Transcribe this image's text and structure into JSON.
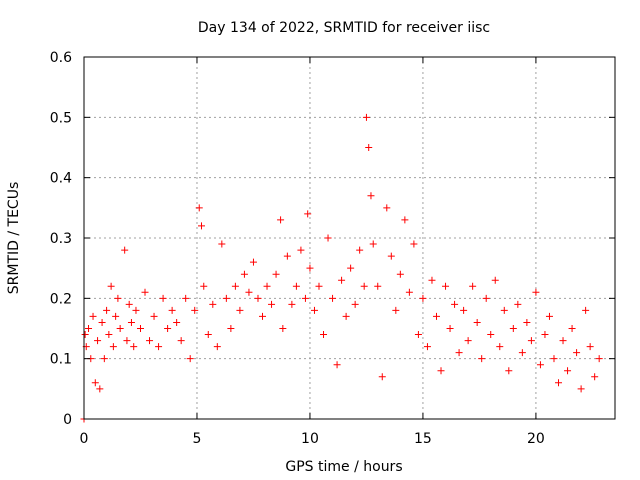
{
  "chart_data": {
    "type": "scatter",
    "title": "Day 134 of 2022, SRMTID for receiver iisc",
    "xlabel": "GPS time / hours",
    "ylabel": "SRMTID / TECUs",
    "xlim": [
      0,
      23.5
    ],
    "ylim": [
      0,
      0.6
    ],
    "xticks": [
      0,
      5,
      10,
      15,
      20
    ],
    "yticks": [
      0,
      0.1,
      0.2,
      0.3,
      0.4,
      0.5,
      0.6
    ],
    "grid": true,
    "marker": "plus",
    "series": [
      {
        "name": "SRMTID",
        "color": "#ff0000",
        "x": [
          0.0,
          0.05,
          0.1,
          0.2,
          0.3,
          0.4,
          0.5,
          0.6,
          0.7,
          0.8,
          0.9,
          1.0,
          1.1,
          1.2,
          1.3,
          1.4,
          1.5,
          1.6,
          1.8,
          1.9,
          2.0,
          2.1,
          2.2,
          2.3,
          2.5,
          2.7,
          2.9,
          3.1,
          3.3,
          3.5,
          3.7,
          3.9,
          4.1,
          4.3,
          4.5,
          4.7,
          4.9,
          5.1,
          5.2,
          5.3,
          5.5,
          5.7,
          5.9,
          6.1,
          6.3,
          6.5,
          6.7,
          6.9,
          7.1,
          7.3,
          7.5,
          7.7,
          7.9,
          8.1,
          8.3,
          8.5,
          8.7,
          8.8,
          9.0,
          9.2,
          9.4,
          9.6,
          9.8,
          9.9,
          10.0,
          10.2,
          10.4,
          10.6,
          10.8,
          11.0,
          11.2,
          11.4,
          11.6,
          11.8,
          12.0,
          12.2,
          12.4,
          12.5,
          12.6,
          12.7,
          12.8,
          13.0,
          13.2,
          13.4,
          13.6,
          13.8,
          14.0,
          14.2,
          14.4,
          14.6,
          14.8,
          15.0,
          15.2,
          15.4,
          15.6,
          15.8,
          16.0,
          16.2,
          16.4,
          16.6,
          16.8,
          17.0,
          17.2,
          17.4,
          17.6,
          17.8,
          18.0,
          18.2,
          18.4,
          18.6,
          18.8,
          19.0,
          19.2,
          19.4,
          19.6,
          19.8,
          20.0,
          20.2,
          20.4,
          20.6,
          20.8,
          21.0,
          21.2,
          21.4,
          21.6,
          21.8,
          22.0,
          22.2,
          22.4,
          22.6,
          22.8
        ],
        "y": [
          0.0,
          0.14,
          0.12,
          0.15,
          0.1,
          0.17,
          0.06,
          0.13,
          0.05,
          0.16,
          0.1,
          0.18,
          0.14,
          0.22,
          0.12,
          0.17,
          0.2,
          0.15,
          0.28,
          0.13,
          0.19,
          0.16,
          0.12,
          0.18,
          0.15,
          0.21,
          0.13,
          0.17,
          0.12,
          0.2,
          0.15,
          0.18,
          0.16,
          0.13,
          0.2,
          0.1,
          0.18,
          0.35,
          0.32,
          0.22,
          0.14,
          0.19,
          0.12,
          0.29,
          0.2,
          0.15,
          0.22,
          0.18,
          0.24,
          0.21,
          0.26,
          0.2,
          0.17,
          0.22,
          0.19,
          0.24,
          0.33,
          0.15,
          0.27,
          0.19,
          0.22,
          0.28,
          0.2,
          0.34,
          0.25,
          0.18,
          0.22,
          0.14,
          0.3,
          0.2,
          0.09,
          0.23,
          0.17,
          0.25,
          0.19,
          0.28,
          0.22,
          0.5,
          0.45,
          0.37,
          0.29,
          0.22,
          0.07,
          0.35,
          0.27,
          0.18,
          0.24,
          0.33,
          0.21,
          0.29,
          0.14,
          0.2,
          0.12,
          0.23,
          0.17,
          0.08,
          0.22,
          0.15,
          0.19,
          0.11,
          0.18,
          0.13,
          0.22,
          0.16,
          0.1,
          0.2,
          0.14,
          0.23,
          0.12,
          0.18,
          0.08,
          0.15,
          0.19,
          0.11,
          0.16,
          0.13,
          0.21,
          0.09,
          0.14,
          0.17,
          0.1,
          0.06,
          0.13,
          0.08,
          0.15,
          0.11,
          0.05,
          0.18,
          0.12,
          0.07,
          0.1
        ]
      }
    ]
  }
}
